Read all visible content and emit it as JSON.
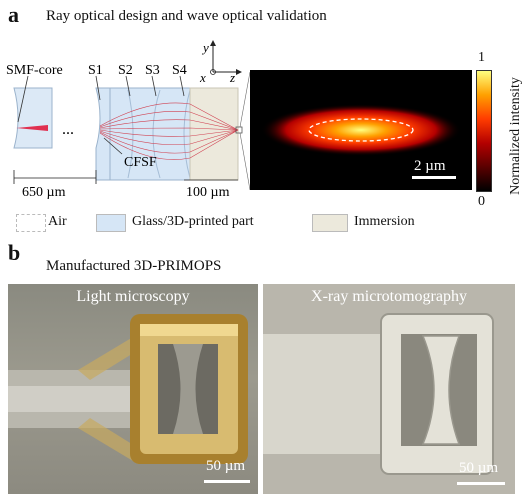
{
  "panel_a": {
    "letter": "a",
    "caption": "Ray optical design and wave optical validation",
    "labels": {
      "smf_core": "SMF-core",
      "s1": "S1",
      "s2": "S2",
      "s3": "S3",
      "s4": "S4",
      "ellipsis": "...",
      "cfsf": "CFSF",
      "dim_650": "650 µm",
      "dim_100": "100 µm",
      "axis_y": "y",
      "axis_x": "x",
      "axis_z": "z"
    },
    "heatmap": {
      "colorbar_label": "Normalized intensity",
      "colorbar_max": "1",
      "colorbar_min": "0",
      "scale_bar": "2 µm",
      "colors": [
        "#000000",
        "#5a0000",
        "#b40000",
        "#ff3c00",
        "#ffa000",
        "#ffff80"
      ]
    },
    "legend": [
      {
        "label": "Air",
        "color": "#ffffff"
      },
      {
        "label": "Glass/3D-printed part",
        "color": "#d6e6f6"
      },
      {
        "label": "Immersion",
        "color": "#ece9dc"
      }
    ]
  },
  "panel_b": {
    "letter": "b",
    "caption": "Manufactured 3D-PRIMOPS",
    "images": [
      {
        "title": "Light microscopy",
        "scale_bar": "50 µm"
      },
      {
        "title": "X-ray microtomography",
        "scale_bar": "50 µm"
      }
    ]
  }
}
